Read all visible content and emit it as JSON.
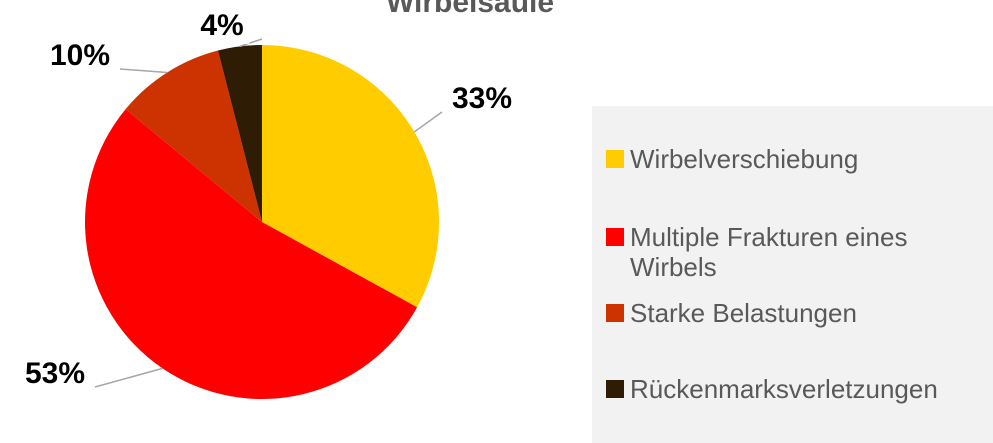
{
  "chart_data": {
    "type": "pie",
    "title": "Wirbelsäule",
    "categories": [
      "Wirbelverschiebung",
      "Multiple Frakturen eines Wirbels",
      "Starke Belastungen",
      "Rückenmarksverletzungen"
    ],
    "values": [
      33,
      53,
      10,
      4
    ],
    "value_labels": [
      "33%",
      "53%",
      "10%",
      "4%"
    ],
    "colors": [
      "#FFCC00",
      "#FF0000",
      "#CC3300",
      "#2E1C05"
    ],
    "legend": "right"
  }
}
